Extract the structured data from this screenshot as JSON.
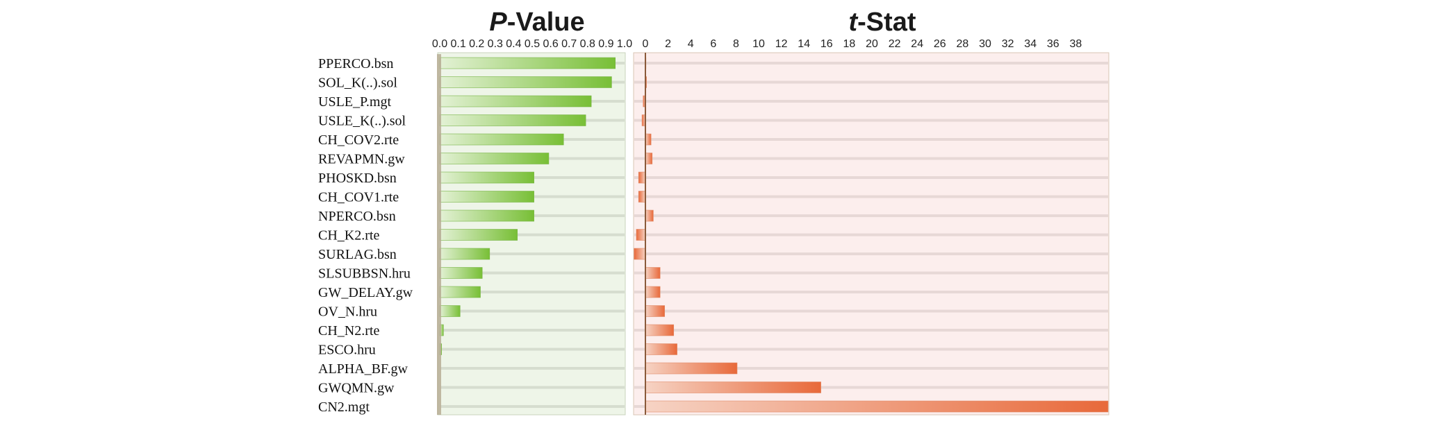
{
  "chart_data": [
    {
      "type": "bar",
      "orientation": "horizontal",
      "title_prefix": "P",
      "title_suffix": "-Value",
      "xlim": [
        0,
        1
      ],
      "ticks": [
        "0.0",
        "0.1",
        "0.2",
        "0.3",
        "0.4",
        "0.5",
        "0.6",
        "0.7",
        "0.8",
        "0.9",
        "1.0"
      ],
      "categories": [
        "PPERCO.bsn",
        "SOL_K(..).sol",
        "USLE_P.mgt",
        "USLE_K(..).sol",
        "CH_COV2.rte",
        "REVAPMN.gw",
        "PHOSKD.bsn",
        "CH_COV1.rte",
        "NPERCO.bsn",
        "CH_K2.rte",
        "SURLAG.bsn",
        "SLSUBBSN.hru",
        "GW_DELAY.gw",
        "OV_N.hru",
        "CH_N2.rte",
        "ESCO.hru",
        "ALPHA_BF.gw",
        "GWQMN.gw",
        "CN2.mgt"
      ],
      "values": [
        0.95,
        0.93,
        0.82,
        0.79,
        0.67,
        0.59,
        0.51,
        0.51,
        0.51,
        0.42,
        0.27,
        0.23,
        0.22,
        0.11,
        0.02,
        0.01,
        0.0,
        0.0,
        0.0
      ],
      "color": "#7cc13e"
    },
    {
      "type": "bar",
      "orientation": "horizontal",
      "title_prefix": "t",
      "title_suffix": "-Stat",
      "xlim": [
        -1,
        40.5
      ],
      "ticks": [
        "0",
        "2",
        "4",
        "6",
        "8",
        "10",
        "12",
        "14",
        "16",
        "18",
        "20",
        "22",
        "24",
        "26",
        "28",
        "30",
        "32",
        "34",
        "36",
        "38"
      ],
      "categories": [
        "PPERCO.bsn",
        "SOL_K(..).sol",
        "USLE_P.mgt",
        "USLE_K(..).sol",
        "CH_COV2.rte",
        "REVAPMN.gw",
        "PHOSKD.bsn",
        "CH_COV1.rte",
        "NPERCO.bsn",
        "CH_K2.rte",
        "SURLAG.bsn",
        "SLSUBBSN.hru",
        "GW_DELAY.gw",
        "OV_N.hru",
        "CH_N2.rte",
        "ESCO.hru",
        "ALPHA_BF.gw",
        "GWQMN.gw",
        "CN2.mgt"
      ],
      "values": [
        0.05,
        0.1,
        -0.2,
        -0.3,
        0.5,
        0.6,
        -0.6,
        -0.6,
        0.7,
        -0.8,
        -1.0,
        1.3,
        1.3,
        1.7,
        2.5,
        2.8,
        8.1,
        15.5,
        41.0
      ],
      "color": "#e8703f"
    }
  ]
}
